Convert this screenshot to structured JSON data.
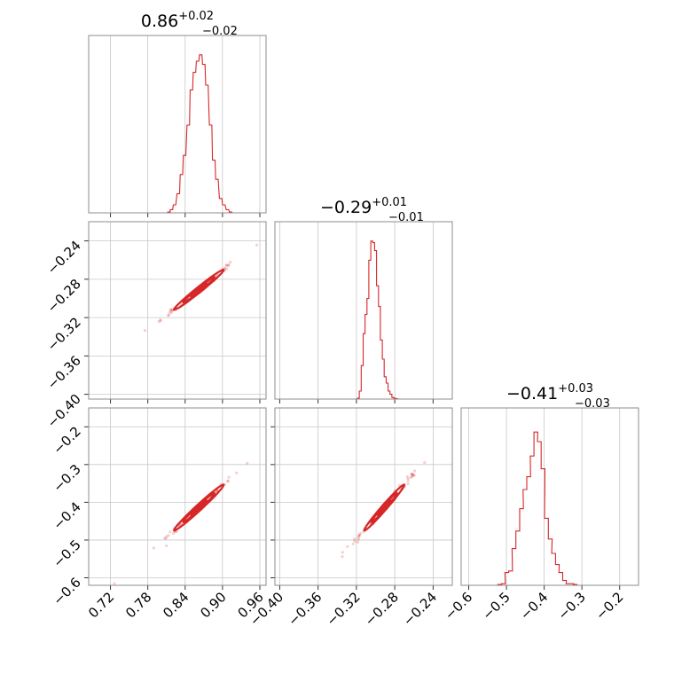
{
  "chart_data": {
    "type": "corner",
    "color": "#d62728",
    "grid": true,
    "parameters": [
      {
        "title_median": "0.86",
        "title_plus": "+0.02",
        "title_minus": "−0.02",
        "range": [
          0.685,
          0.97
        ],
        "ticks": [
          0.72,
          0.78,
          0.84,
          0.9,
          0.96
        ],
        "tick_labels": [
          "0.72",
          "0.78",
          "0.84",
          "0.90",
          "0.96"
        ],
        "histogram": [
          [
            0.814,
            0.005
          ],
          [
            0.818,
            0.02
          ],
          [
            0.823,
            0.05
          ],
          [
            0.829,
            0.12
          ],
          [
            0.834,
            0.24
          ],
          [
            0.839,
            0.36
          ],
          [
            0.845,
            0.55
          ],
          [
            0.85,
            0.77
          ],
          [
            0.855,
            0.88
          ],
          [
            0.86,
            0.95
          ],
          [
            0.865,
            0.99
          ],
          [
            0.87,
            0.93
          ],
          [
            0.875,
            0.8
          ],
          [
            0.881,
            0.55
          ],
          [
            0.886,
            0.33
          ],
          [
            0.891,
            0.21
          ],
          [
            0.897,
            0.09
          ],
          [
            0.902,
            0.05
          ],
          [
            0.908,
            0.02
          ],
          [
            0.913,
            0.005
          ]
        ]
      },
      {
        "title_median": "−0.29",
        "title_plus": "+0.01",
        "title_minus": "−0.01",
        "range": [
          -0.405,
          -0.22
        ],
        "ticks": [
          -0.4,
          -0.36,
          -0.32,
          -0.28,
          -0.24
        ],
        "tick_labels": [
          "−0.40",
          "−0.36",
          "−0.32",
          "−0.28",
          "−0.24"
        ],
        "histogram": [
          [
            -0.318,
            0.005
          ],
          [
            -0.316,
            0.05
          ],
          [
            -0.314,
            0.21
          ],
          [
            -0.312,
            0.41
          ],
          [
            -0.31,
            0.53
          ],
          [
            -0.308,
            0.63
          ],
          [
            -0.306,
            0.87
          ],
          [
            -0.304,
            0.99
          ],
          [
            -0.302,
            0.98
          ],
          [
            -0.3,
            0.93
          ],
          [
            -0.298,
            0.71
          ],
          [
            -0.296,
            0.58
          ],
          [
            -0.294,
            0.37
          ],
          [
            -0.292,
            0.25
          ],
          [
            -0.29,
            0.14
          ],
          [
            -0.288,
            0.1
          ],
          [
            -0.286,
            0.05
          ],
          [
            -0.284,
            0.03
          ],
          [
            -0.282,
            0.01
          ],
          [
            -0.28,
            0.005
          ],
          [
            -0.278,
            0.002
          ]
        ]
      },
      {
        "title_median": "−0.41",
        "title_plus": "+0.03",
        "title_minus": "−0.03",
        "range": [
          -0.62,
          -0.15
        ],
        "ticks": [
          -0.6,
          -0.5,
          -0.4,
          -0.3,
          -0.2
        ],
        "tick_labels": [
          "−0.6",
          "−0.5",
          "−0.4",
          "−0.3",
          "−0.2"
        ],
        "histogram": [
          [
            -0.518,
            0.005
          ],
          [
            -0.508,
            0.01
          ],
          [
            -0.499,
            0.08
          ],
          [
            -0.489,
            0.09
          ],
          [
            -0.48,
            0.23
          ],
          [
            -0.47,
            0.34
          ],
          [
            -0.46,
            0.48
          ],
          [
            -0.451,
            0.6
          ],
          [
            -0.441,
            0.68
          ],
          [
            -0.432,
            0.81
          ],
          [
            -0.422,
            0.96
          ],
          [
            -0.413,
            0.9
          ],
          [
            -0.403,
            0.73
          ],
          [
            -0.394,
            0.42
          ],
          [
            -0.384,
            0.29
          ],
          [
            -0.375,
            0.2
          ],
          [
            -0.365,
            0.13
          ],
          [
            -0.356,
            0.08
          ],
          [
            -0.346,
            0.03
          ],
          [
            -0.337,
            0.01
          ],
          [
            -0.327,
            0.01
          ],
          [
            -0.318,
            0.005
          ]
        ]
      }
    ],
    "scatter_pairs": [
      {
        "x_param": 0,
        "y_param": 1,
        "center": [
          0.862,
          -0.291
        ],
        "sigma": [
          0.021,
          0.011
        ]
      },
      {
        "x_param": 0,
        "y_param": 2,
        "center": [
          0.862,
          -0.414
        ],
        "sigma": [
          0.021,
          0.032
        ]
      },
      {
        "x_param": 1,
        "y_param": 2,
        "center": [
          -0.291,
          -0.414
        ],
        "sigma": [
          0.011,
          0.032
        ]
      }
    ]
  }
}
